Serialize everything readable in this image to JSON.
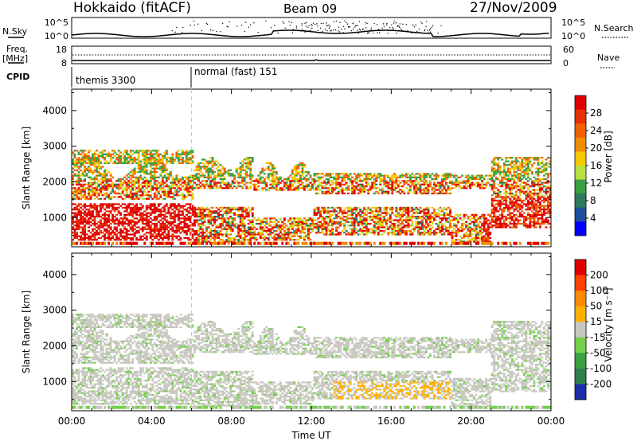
{
  "header": {
    "station": "Hokkaido (fitACF)",
    "beam": "Beam 09",
    "date": "27/Nov/2009"
  },
  "noise_panel": {
    "left_label": "N.Sky",
    "right_label": "N.Search",
    "tick_top": "10^5",
    "tick_bottom": "10^0"
  },
  "freq_panel": {
    "label_line1": "Freq.",
    "label_line2": "[MHz]",
    "left_ticks": [
      "18",
      "8"
    ],
    "right_ticks": [
      "60",
      "0"
    ],
    "right_label": "Nave"
  },
  "cpid_panel": {
    "label": "CPID",
    "modes": [
      {
        "name": "themis 3300",
        "start_hour": 0
      },
      {
        "name": "normal (fast) 151",
        "start_hour": 6
      }
    ]
  },
  "x_axis": {
    "label": "Time UT",
    "ticks": [
      "00:00",
      "04:00",
      "08:00",
      "12:00",
      "16:00",
      "20:00",
      "00:00"
    ]
  },
  "chart_data": [
    {
      "type": "heatmap",
      "title": "Power",
      "xlabel": "Time UT",
      "ylabel": "Slant Range [km]",
      "xlim_hours": [
        0,
        24
      ],
      "ylim": [
        180,
        4600
      ],
      "y_ticks": [
        "1000",
        "2000",
        "3000",
        "4000"
      ],
      "colorbar": {
        "label": "Power [dB]",
        "ticks": [
          "4",
          "8",
          "12",
          "16",
          "20",
          "24",
          "28"
        ],
        "colors": [
          "#0000ff",
          "#1f4fa0",
          "#2f7a5a",
          "#3aa040",
          "#b8e040",
          "#f5c800",
          "#f08c00",
          "#f06000",
          "#e83000",
          "#e00000"
        ]
      }
    },
    {
      "type": "heatmap",
      "title": "Velocity",
      "xlabel": "Time UT",
      "ylabel": "Slant Range [km]",
      "xlim_hours": [
        0,
        24
      ],
      "ylim": [
        180,
        4600
      ],
      "y_ticks": [
        "1000",
        "2000",
        "3000",
        "4000"
      ],
      "colorbar": {
        "label": "Velocity [m s⁻¹]",
        "ticks": [
          "200",
          "100",
          "50",
          "15",
          "-15",
          "-50",
          "-100",
          "-200"
        ],
        "colors": [
          "#1c2fa8",
          "#2e7f4c",
          "#3aa040",
          "#74d04a",
          "#c8c8c0",
          "#ffb000",
          "#ff8a00",
          "#ff4000",
          "#e00000"
        ]
      }
    }
  ]
}
